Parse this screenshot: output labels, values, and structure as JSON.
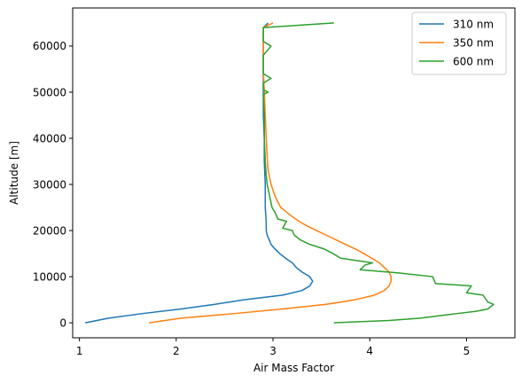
{
  "chart_data": {
    "type": "line",
    "xlabel": "Air Mass Factor",
    "ylabel": "Altitude [m]",
    "xlim": [
      0.93,
      5.5
    ],
    "ylim": [
      -3250,
      68250
    ],
    "xticks": [
      "1",
      "2",
      "3",
      "4",
      "5"
    ],
    "xtick_values": [
      1,
      2,
      3,
      4,
      5
    ],
    "yticks": [
      "0",
      "10000",
      "20000",
      "30000",
      "40000",
      "50000",
      "60000"
    ],
    "ytick_values": [
      0,
      10000,
      20000,
      30000,
      40000,
      50000,
      60000
    ],
    "grid": false,
    "legend_position": "top-right",
    "series": [
      {
        "name": "310 nm",
        "color": "#1f77b4",
        "points": [
          [
            1.06,
            0
          ],
          [
            1.3,
            1000
          ],
          [
            1.65,
            2000
          ],
          [
            2.05,
            3000
          ],
          [
            2.4,
            4000
          ],
          [
            2.7,
            5000
          ],
          [
            3.1,
            6000
          ],
          [
            3.3,
            7000
          ],
          [
            3.38,
            8000
          ],
          [
            3.41,
            9000
          ],
          [
            3.38,
            10000
          ],
          [
            3.3,
            11000
          ],
          [
            3.24,
            12000
          ],
          [
            3.2,
            13000
          ],
          [
            3.13,
            14000
          ],
          [
            3.07,
            15000
          ],
          [
            3.02,
            16000
          ],
          [
            2.98,
            17000
          ],
          [
            2.96,
            18000
          ],
          [
            2.94,
            19000
          ],
          [
            2.93,
            20000
          ],
          [
            2.93,
            22000
          ],
          [
            2.92,
            25000
          ],
          [
            2.92,
            30000
          ],
          [
            2.91,
            35000
          ],
          [
            2.91,
            40000
          ],
          [
            2.9,
            45000
          ],
          [
            2.9,
            50000
          ],
          [
            2.9,
            55000
          ],
          [
            2.9,
            60000
          ],
          [
            2.9,
            64000
          ],
          [
            2.95,
            65000
          ]
        ]
      },
      {
        "name": "350 nm",
        "color": "#ff7f0e",
        "points": [
          [
            1.72,
            0
          ],
          [
            2.05,
            1000
          ],
          [
            2.6,
            2000
          ],
          [
            3.1,
            3000
          ],
          [
            3.55,
            4000
          ],
          [
            3.85,
            5000
          ],
          [
            4.05,
            6000
          ],
          [
            4.15,
            7000
          ],
          [
            4.2,
            8000
          ],
          [
            4.22,
            9000
          ],
          [
            4.22,
            10000
          ],
          [
            4.2,
            11000
          ],
          [
            4.15,
            12000
          ],
          [
            4.1,
            13000
          ],
          [
            4.02,
            14000
          ],
          [
            3.94,
            15000
          ],
          [
            3.85,
            16000
          ],
          [
            3.75,
            17000
          ],
          [
            3.65,
            18000
          ],
          [
            3.55,
            19000
          ],
          [
            3.45,
            20000
          ],
          [
            3.35,
            21000
          ],
          [
            3.27,
            22000
          ],
          [
            3.2,
            23000
          ],
          [
            3.14,
            24000
          ],
          [
            3.08,
            25000
          ],
          [
            3.02,
            27500
          ],
          [
            2.98,
            30000
          ],
          [
            2.95,
            33000
          ],
          [
            2.94,
            36000
          ],
          [
            2.93,
            40000
          ],
          [
            2.92,
            45000
          ],
          [
            2.91,
            50000
          ],
          [
            2.9,
            55000
          ],
          [
            2.9,
            60000
          ],
          [
            2.9,
            64000
          ],
          [
            3.0,
            65000
          ]
        ]
      },
      {
        "name": "600 nm",
        "color": "#2ca02c",
        "points": [
          [
            3.63,
            0
          ],
          [
            4.2,
            500
          ],
          [
            4.52,
            1000
          ],
          [
            4.9,
            2000
          ],
          [
            5.1,
            2500
          ],
          [
            5.22,
            3000
          ],
          [
            5.28,
            4000
          ],
          [
            5.22,
            4500
          ],
          [
            5.17,
            6000
          ],
          [
            5.0,
            6500
          ],
          [
            5.05,
            8000
          ],
          [
            4.68,
            8500
          ],
          [
            4.65,
            10000
          ],
          [
            4.3,
            10800
          ],
          [
            3.9,
            11500
          ],
          [
            3.95,
            12500
          ],
          [
            4.03,
            13000
          ],
          [
            3.7,
            14000
          ],
          [
            3.62,
            15000
          ],
          [
            3.53,
            16000
          ],
          [
            3.38,
            17000
          ],
          [
            3.28,
            18000
          ],
          [
            3.22,
            19000
          ],
          [
            3.2,
            20000
          ],
          [
            3.1,
            20500
          ],
          [
            3.14,
            22000
          ],
          [
            3.05,
            22500
          ],
          [
            3.02,
            24000
          ],
          [
            2.99,
            25000
          ],
          [
            2.98,
            26000
          ],
          [
            2.96,
            28000
          ],
          [
            2.94,
            30000
          ],
          [
            2.93,
            32000
          ],
          [
            2.92,
            35000
          ],
          [
            2.91,
            40000
          ],
          [
            2.91,
            45000
          ],
          [
            2.9,
            49500
          ],
          [
            2.95,
            50000
          ],
          [
            2.9,
            50500
          ],
          [
            2.9,
            52000
          ],
          [
            2.98,
            53000
          ],
          [
            2.9,
            54000
          ],
          [
            2.9,
            58000
          ],
          [
            2.98,
            60000
          ],
          [
            2.9,
            61000
          ],
          [
            2.9,
            64000
          ],
          [
            3.63,
            65000
          ]
        ]
      }
    ]
  }
}
